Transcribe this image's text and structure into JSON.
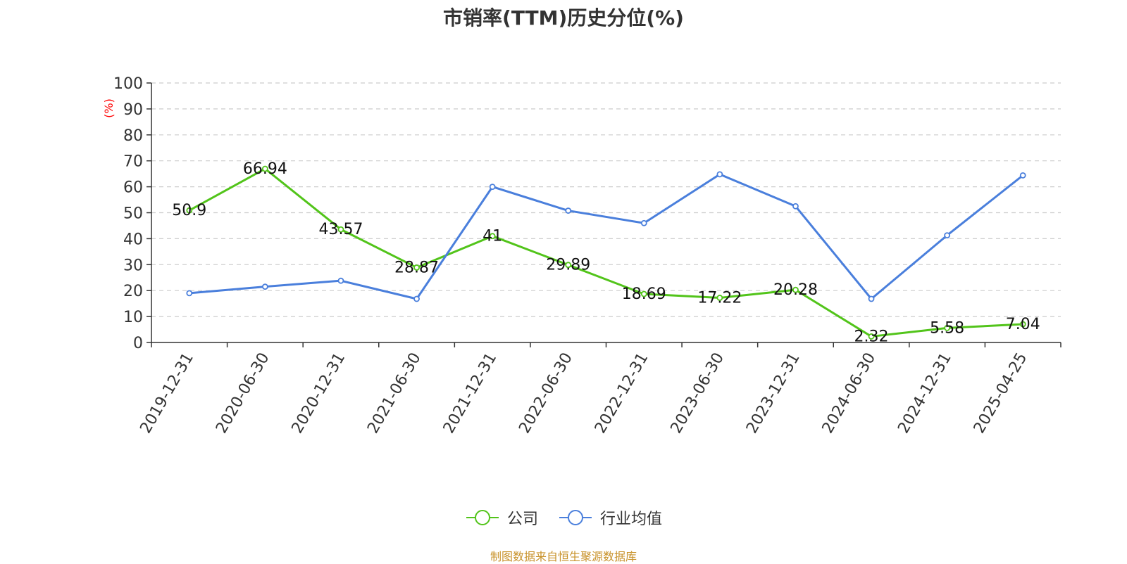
{
  "chart_data": {
    "type": "line",
    "title": "市销率(TTM)历史分位(%)",
    "ylabel": "(%)",
    "xlabel": "",
    "ylim": [
      0,
      100
    ],
    "yticks": [
      0,
      10,
      20,
      30,
      40,
      50,
      60,
      70,
      80,
      90,
      100
    ],
    "grid": true,
    "legend_position": "bottom-center",
    "categories": [
      "2019-12-31",
      "2020-06-30",
      "2020-12-31",
      "2021-06-30",
      "2021-12-31",
      "2022-06-30",
      "2022-12-31",
      "2023-06-30",
      "2023-12-31",
      "2024-06-30",
      "2024-12-31",
      "2025-04-25"
    ],
    "series": [
      {
        "name": "公司",
        "color": "#52c41a",
        "values": [
          50.9,
          66.94,
          43.57,
          28.87,
          41,
          29.89,
          18.69,
          17.22,
          20.28,
          2.32,
          5.58,
          7.04
        ],
        "labels": [
          "50.9",
          "66.94",
          "43.57",
          "28.87",
          "41",
          "29.89",
          "18.69",
          "17.22",
          "20.28",
          "2.32",
          "5.58",
          "7.04"
        ]
      },
      {
        "name": "行业均值",
        "color": "#4a7fdc",
        "values": [
          19,
          21.5,
          23.8,
          16.8,
          60,
          50.8,
          46,
          64.8,
          52.5,
          16.8,
          41.3,
          64.4
        ]
      }
    ]
  },
  "source_note": "制图数据来自恒生聚源数据库",
  "colors": {
    "title": "#333333",
    "ylabel": "#ff0000",
    "source_note": "#c8922a",
    "grid": "#cccccc",
    "axis": "#333333"
  }
}
